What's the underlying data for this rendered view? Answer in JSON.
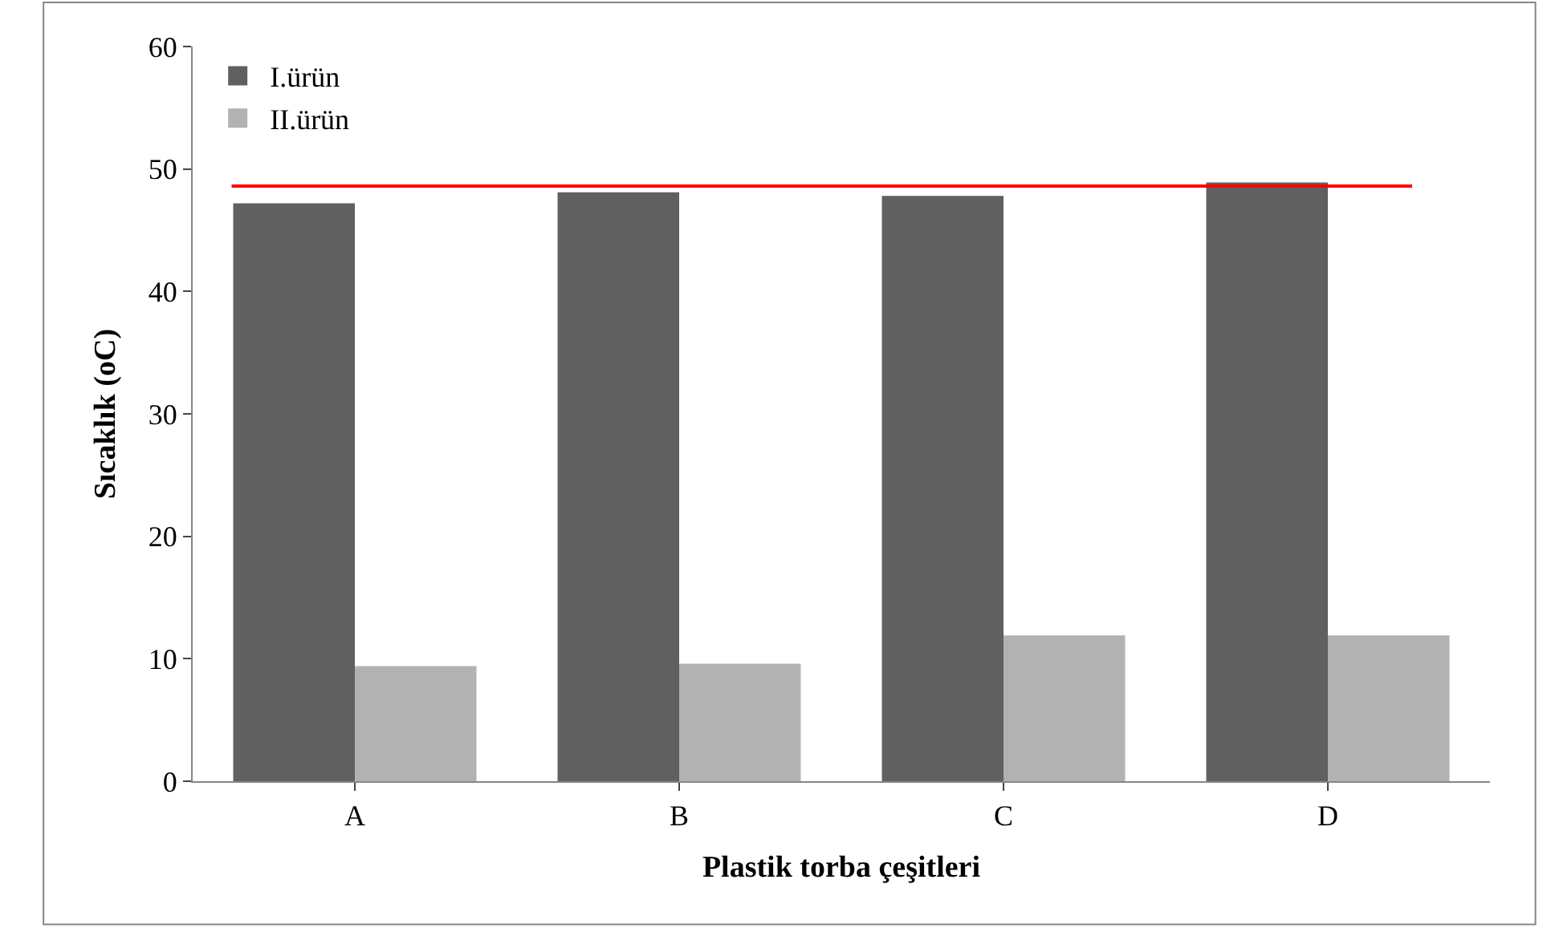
{
  "chart_data": {
    "type": "bar",
    "xlabel": "Plastik torba çeşitleri",
    "ylabel": "Sıcaklık (oC)",
    "categories": [
      "A",
      "B",
      "C",
      "D"
    ],
    "series": [
      {
        "name": "I.ürün",
        "color": "#606060",
        "values": [
          47.2,
          48.1,
          47.8,
          48.9
        ]
      },
      {
        "name": "II.ürün",
        "color": "#b2b2b2",
        "values": [
          9.4,
          9.6,
          11.9,
          11.9
        ]
      }
    ],
    "ylim": [
      0,
      60
    ],
    "yticks": [
      0,
      10,
      20,
      30,
      40,
      50,
      60
    ],
    "legend": "top left",
    "ref_lines": [
      {
        "axis": "y",
        "value": 48.6,
        "color": "#ff0000"
      }
    ]
  }
}
